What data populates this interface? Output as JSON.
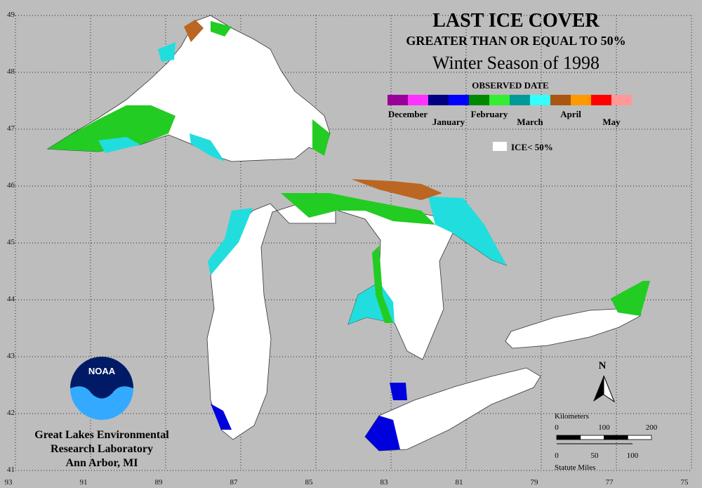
{
  "title": "LAST ICE COVER",
  "subtitle": "GREATER THAN OR EQUAL TO 50%",
  "season": "Winter Season of 1998",
  "legend": {
    "title": "OBSERVED DATE",
    "items": [
      {
        "label": "December",
        "colors": [
          "#990099",
          "#ff33ff"
        ]
      },
      {
        "label": "January",
        "colors": [
          "#000080",
          "#0000ff"
        ]
      },
      {
        "label": "February",
        "colors": [
          "#008800",
          "#33ee33"
        ]
      },
      {
        "label": "March",
        "colors": [
          "#009999",
          "#33ffff"
        ]
      },
      {
        "label": "April",
        "colors": [
          "#aa5511",
          "#ff9900"
        ]
      },
      {
        "label": "May",
        "colors": [
          "#ff0000",
          "#ff9999"
        ]
      }
    ],
    "low_ice_label": "ICE< 50%"
  },
  "grid": {
    "longitudes": [
      93,
      91,
      89,
      87,
      85,
      83,
      81,
      79,
      77,
      75
    ],
    "latitudes": [
      49,
      48,
      47,
      46,
      45,
      44,
      43,
      42,
      41
    ]
  },
  "scale": {
    "km_label": "Kilometers",
    "km_ticks": [
      0,
      100,
      200
    ],
    "mile_ticks": [
      0,
      50,
      100
    ],
    "mile_label": "Statute Miles"
  },
  "north": "N",
  "logo_text": "NOAA",
  "credit": [
    "Great Lakes Environmental",
    "Research Laboratory",
    "Ann Arbor, MI"
  ]
}
